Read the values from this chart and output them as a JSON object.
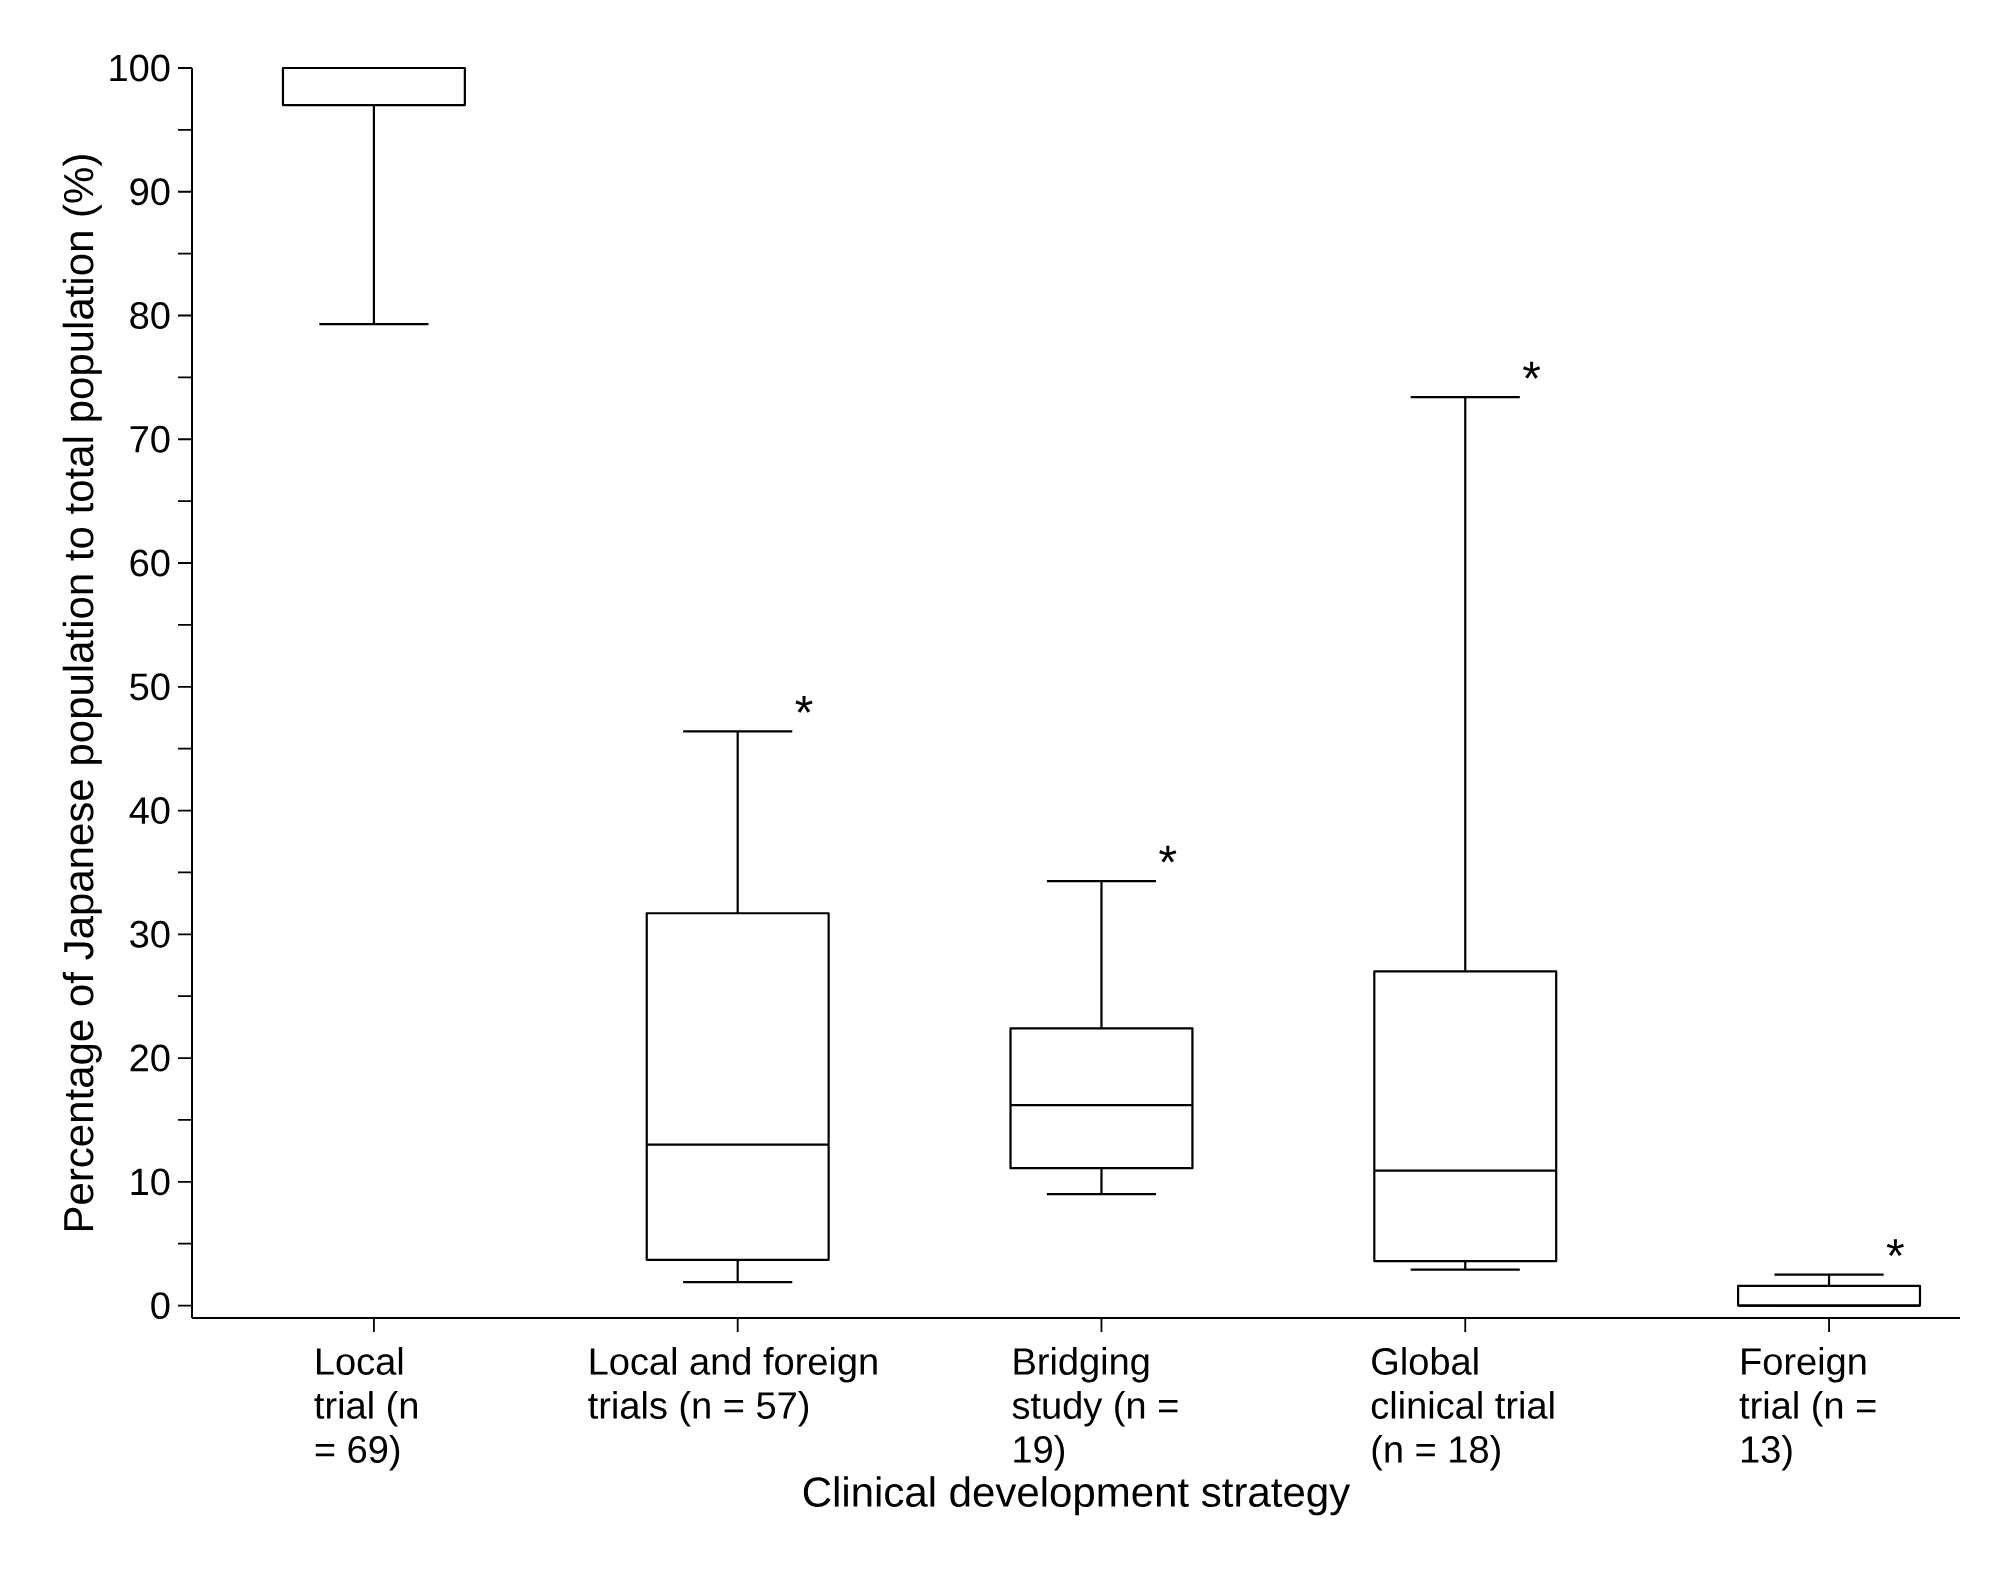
{
  "chart_data": {
    "type": "box",
    "xlabel": "Clinical development strategy",
    "ylabel": "Percentage of Japanese population to total population (%)",
    "categories": [
      "Local trial (n = 69)",
      "Local and foreign trials (n = 57)",
      "Bridging study (n = 19)",
      "Global clinical trial (n = 18)",
      "Foreign trial (n = 13)"
    ],
    "boxes": [
      {
        "low": 79.3,
        "q1": 97,
        "median": 100,
        "q3": 100,
        "high": 100
      },
      {
        "low": 1.9,
        "q1": 3.7,
        "median": 13.0,
        "q3": 31.7,
        "high": 46.4
      },
      {
        "low": 9.0,
        "q1": 11.1,
        "median": 16.2,
        "q3": 22.4,
        "high": 34.3
      },
      {
        "low": 2.9,
        "q1": 3.6,
        "median": 10.9,
        "q3": 27.0,
        "high": 73.4
      },
      {
        "low": 0,
        "q1": 0,
        "median": 0,
        "q3": 1.6,
        "high": 2.5
      }
    ],
    "ylim": [
      -1,
      100
    ],
    "yticks": [
      0,
      {
        "value": 5,
        "label": null
      },
      10,
      {
        "value": 15,
        "label": null
      },
      20,
      {
        "value": 25,
        "label": null
      },
      30,
      {
        "value": 35,
        "label": null
      },
      40,
      {
        "value": 45,
        "label": null
      },
      50,
      {
        "value": 55,
        "label": null
      },
      60,
      {
        "value": 65,
        "label": null
      },
      70,
      {
        "value": 75,
        "label": null
      },
      80,
      {
        "value": 85,
        "label": null
      },
      90,
      {
        "value": 95,
        "label": null
      },
      100
    ],
    "grid": false,
    "annotations": [
      {
        "text": "*",
        "x": "Local and foreign trials (n = 57)",
        "y": 46.4
      },
      {
        "text": "*",
        "x": "Bridging study (n = 19)",
        "y": 34.3
      },
      {
        "text": "*",
        "x": "Global clinical trial (n = 18)",
        "y": 73.4
      },
      {
        "text": "*",
        "x": "Foreign trial (n = 13)",
        "y": 2.5
      }
    ]
  }
}
